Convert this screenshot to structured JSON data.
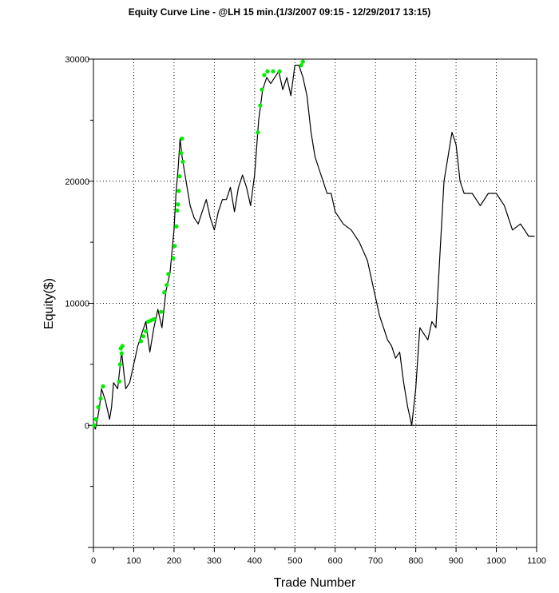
{
  "chart_data": {
    "type": "line",
    "title": "Equity Curve Line - @LH 15 min.(1/3/2007 09:15 - 12/29/2017 13:15)",
    "xlabel": "Trade Number",
    "ylabel": "Equity($)",
    "xlim": [
      0,
      1100
    ],
    "ylim": [
      -10000,
      30000
    ],
    "x_ticks": [
      0,
      100,
      200,
      300,
      400,
      500,
      600,
      700,
      800,
      900,
      1000,
      1100
    ],
    "y_ticks": [
      0,
      10000,
      20000,
      30000
    ],
    "grid": true,
    "series": [
      {
        "color": "#000000",
        "x": [
          0,
          5,
          10,
          15,
          20,
          25,
          30,
          40,
          45,
          50,
          60,
          70,
          75,
          80,
          90,
          100,
          110,
          120,
          130,
          140,
          150,
          160,
          170,
          180,
          190,
          200,
          205,
          210,
          215,
          220,
          225,
          230,
          240,
          250,
          260,
          270,
          280,
          290,
          300,
          310,
          320,
          330,
          340,
          350,
          360,
          370,
          380,
          390,
          400,
          410,
          420,
          430,
          440,
          450,
          460,
          470,
          480,
          490,
          500,
          510,
          520,
          530,
          540,
          550,
          560,
          570,
          580,
          590,
          600,
          620,
          640,
          660,
          680,
          700,
          710,
          720,
          730,
          740,
          750,
          760,
          770,
          780,
          790,
          800,
          810,
          820,
          830,
          840,
          850,
          860,
          870,
          880,
          890,
          900,
          910,
          920,
          940,
          960,
          980,
          1000,
          1020,
          1040,
          1060,
          1080,
          1095
        ],
        "values": [
          0,
          -300,
          500,
          1500,
          3000,
          2500,
          2000,
          500,
          1500,
          3500,
          3000,
          6000,
          4500,
          3000,
          3500,
          5000,
          6500,
          7500,
          8500,
          6000,
          8000,
          9500,
          8000,
          11000,
          12500,
          16000,
          19000,
          21000,
          23500,
          22000,
          21000,
          20000,
          18000,
          17000,
          16500,
          17500,
          18500,
          17000,
          16000,
          17500,
          18500,
          18500,
          19500,
          17500,
          19500,
          20500,
          19500,
          18000,
          20500,
          25000,
          27500,
          28500,
          28000,
          28500,
          29000,
          27500,
          28500,
          27000,
          29500,
          29500,
          28500,
          27000,
          24000,
          22000,
          21000,
          20000,
          19000,
          19000,
          17500,
          16500,
          16000,
          15000,
          13500,
          10500,
          9000,
          8000,
          7000,
          6500,
          5500,
          6000,
          3500,
          1500,
          0,
          3000,
          8000,
          7500,
          7000,
          8500,
          8000,
          14000,
          20000,
          22000,
          24000,
          23000,
          20000,
          19000,
          19000,
          18000,
          19000,
          19000,
          18000,
          16000,
          16500,
          15500,
          15500
        ]
      }
    ],
    "highlight_points": {
      "color": "#00ee00",
      "x": [
        2,
        6,
        12,
        18,
        24,
        64,
        66,
        68,
        70,
        72,
        118,
        124,
        130,
        136,
        143,
        150,
        168,
        176,
        182,
        186,
        198,
        202,
        206,
        208,
        210,
        212,
        214,
        218,
        220,
        222,
        408,
        414,
        418,
        424,
        432,
        446,
        462,
        516,
        520
      ],
      "values": [
        0,
        500,
        1500,
        2200,
        3200,
        3600,
        5000,
        6300,
        5900,
        6500,
        6900,
        7300,
        7700,
        8500,
        8600,
        8700,
        9300,
        10900,
        11500,
        12400,
        13700,
        14700,
        16300,
        17600,
        18100,
        19200,
        20400,
        22300,
        23500,
        21600,
        24000,
        26200,
        27500,
        28700,
        29000,
        29000,
        29000,
        29500,
        29800
      ]
    }
  }
}
